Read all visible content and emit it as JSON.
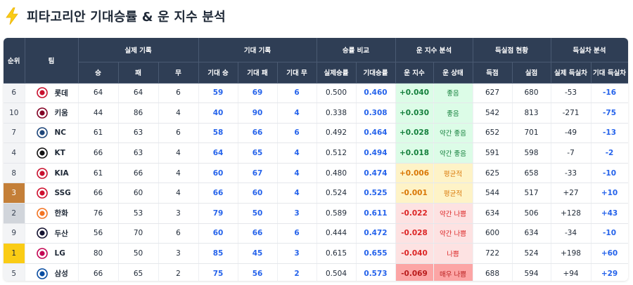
{
  "title": "피타고리안 기대승률 & 운 지수 분석",
  "icons": {
    "title": "lightning-bolt-icon",
    "team": "team-logo-icon"
  },
  "colors": {
    "header": "#2f3e55",
    "blue": "#2563eb",
    "good": "#15803d",
    "avg": "#d97706",
    "bad": "#dc2626"
  },
  "header": {
    "rank": "순위",
    "team": "팀",
    "groups": [
      "실제 기록",
      "기대 기록",
      "승률 비교",
      "운 지수 분석",
      "득실점 현황",
      "득실차 분석"
    ],
    "cols": [
      "승",
      "패",
      "무",
      "기대 승",
      "기대 패",
      "기대 무",
      "실제승률",
      "기대승률",
      "운 지수",
      "운 상태",
      "득점",
      "실점",
      "실제 득실차",
      "기대 득실차"
    ]
  },
  "rows": [
    {
      "rank": "6",
      "team": "롯데",
      "w": "64",
      "l": "64",
      "d": "6",
      "ew": "59",
      "el": "69",
      "ed": "6",
      "act": "0.500",
      "exp": "0.460",
      "luck": "+0.040",
      "state": "좋음",
      "tone": "good",
      "rs": "627",
      "ra": "680",
      "diff": "-53",
      "ediff": "-16",
      "logoColor": "#c8102e"
    },
    {
      "rank": "10",
      "team": "키움",
      "w": "44",
      "l": "86",
      "d": "4",
      "ew": "40",
      "el": "90",
      "ed": "4",
      "act": "0.338",
      "exp": "0.308",
      "luck": "+0.030",
      "state": "좋음",
      "tone": "good",
      "rs": "542",
      "ra": "813",
      "diff": "-271",
      "ediff": "-75",
      "logoColor": "#820024"
    },
    {
      "rank": "7",
      "team": "NC",
      "w": "61",
      "l": "63",
      "d": "6",
      "ew": "58",
      "el": "66",
      "ed": "6",
      "act": "0.492",
      "exp": "0.464",
      "luck": "+0.028",
      "state": "약간 좋음",
      "tone": "good",
      "rs": "652",
      "ra": "701",
      "diff": "-49",
      "ediff": "-13",
      "logoColor": "#1d467a"
    },
    {
      "rank": "4",
      "team": "KT",
      "w": "66",
      "l": "63",
      "d": "4",
      "ew": "64",
      "el": "65",
      "ed": "4",
      "act": "0.512",
      "exp": "0.494",
      "luck": "+0.018",
      "state": "약간 좋음",
      "tone": "good",
      "rs": "591",
      "ra": "598",
      "diff": "-7",
      "ediff": "-2",
      "logoColor": "#111111"
    },
    {
      "rank": "8",
      "team": "KIA",
      "w": "61",
      "l": "66",
      "d": "4",
      "ew": "60",
      "el": "67",
      "ed": "4",
      "act": "0.480",
      "exp": "0.474",
      "luck": "+0.006",
      "state": "평균적",
      "tone": "avg",
      "rs": "625",
      "ra": "658",
      "diff": "-33",
      "ediff": "-10",
      "logoColor": "#c8102e"
    },
    {
      "rank": "3",
      "team": "SSG",
      "w": "66",
      "l": "60",
      "d": "4",
      "ew": "66",
      "el": "60",
      "ed": "4",
      "act": "0.524",
      "exp": "0.525",
      "luck": "-0.001",
      "state": "평균적",
      "tone": "avg",
      "rs": "544",
      "ra": "517",
      "diff": "+27",
      "ediff": "+10",
      "logoColor": "#ce0e2d"
    },
    {
      "rank": "2",
      "team": "한화",
      "w": "76",
      "l": "53",
      "d": "3",
      "ew": "79",
      "el": "50",
      "ed": "3",
      "act": "0.589",
      "exp": "0.611",
      "luck": "-0.022",
      "state": "약간 나쁨",
      "tone": "bad",
      "rs": "634",
      "ra": "506",
      "diff": "+128",
      "ediff": "+43",
      "logoColor": "#f37321"
    },
    {
      "rank": "9",
      "team": "두산",
      "w": "56",
      "l": "70",
      "d": "6",
      "ew": "60",
      "el": "66",
      "ed": "6",
      "act": "0.444",
      "exp": "0.472",
      "luck": "-0.028",
      "state": "약간 나쁨",
      "tone": "bad",
      "rs": "600",
      "ra": "634",
      "diff": "-34",
      "ediff": "-10",
      "logoColor": "#131230"
    },
    {
      "rank": "1",
      "team": "LG",
      "w": "80",
      "l": "50",
      "d": "3",
      "ew": "85",
      "el": "45",
      "ed": "3",
      "act": "0.615",
      "exp": "0.655",
      "luck": "-0.040",
      "state": "나쁨",
      "tone": "bad",
      "rs": "722",
      "ra": "524",
      "diff": "+198",
      "ediff": "+60",
      "logoColor": "#c30452"
    },
    {
      "rank": "5",
      "team": "삼성",
      "w": "66",
      "l": "65",
      "d": "2",
      "ew": "75",
      "el": "56",
      "ed": "2",
      "act": "0.504",
      "exp": "0.573",
      "luck": "-0.069",
      "state": "매우 나쁨",
      "tone": "vbad",
      "rs": "688",
      "ra": "594",
      "diff": "+94",
      "ediff": "+29",
      "logoColor": "#074ca1"
    }
  ]
}
